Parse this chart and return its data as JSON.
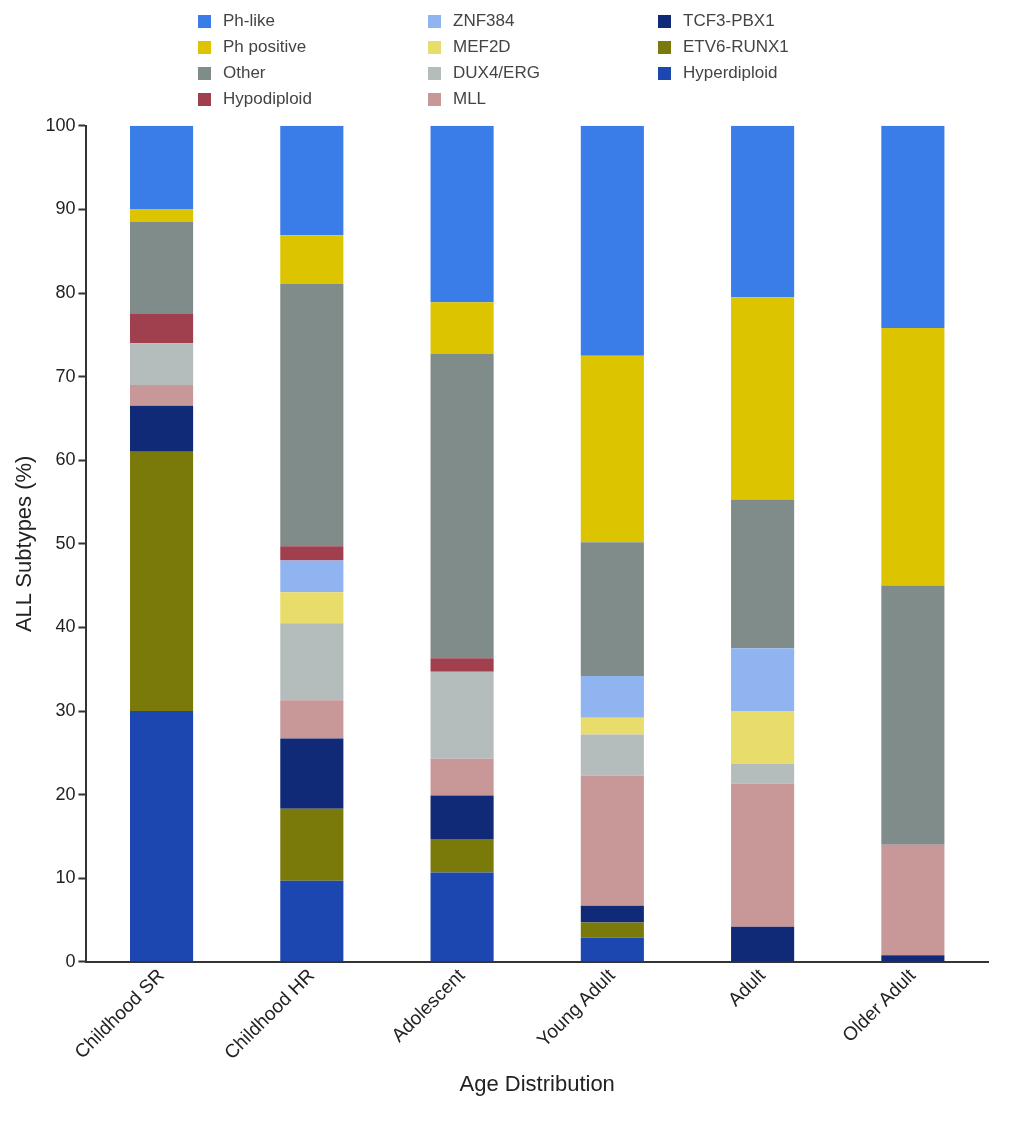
{
  "chart_data": {
    "type": "bar",
    "stacked": true,
    "xlabel": "Age Distribution",
    "ylabel": "ALL Subtypes (%)",
    "categories": [
      "Childhood SR",
      "Childhood HR",
      "Adolescent",
      "Young Adult",
      "Adult",
      "Older Adult"
    ],
    "ylim": [
      0,
      100
    ],
    "yticks": [
      0,
      10,
      20,
      30,
      40,
      50,
      60,
      70,
      80,
      90,
      100
    ],
    "grid": false,
    "legend": "top",
    "series": [
      {
        "name": "Hyperdiploid",
        "color": "#1c46b0",
        "values": [
          30,
          9.7,
          10.7,
          2.9,
          0,
          0
        ]
      },
      {
        "name": "ETV6-RUNX1",
        "color": "#7a7a0a",
        "values": [
          31,
          8.6,
          4,
          1.8,
          0,
          0
        ]
      },
      {
        "name": "TCF3-PBX1",
        "color": "#112a78",
        "values": [
          5.5,
          8.4,
          5.2,
          2,
          4.2,
          0.8
        ]
      },
      {
        "name": "MLL",
        "color": "#c89898",
        "values": [
          2.5,
          4.6,
          4.4,
          15.6,
          17.1,
          13.2
        ]
      },
      {
        "name": "DUX4/ERG",
        "color": "#b5bcbc",
        "values": [
          5,
          9.2,
          10.4,
          4.9,
          2.4,
          0
        ]
      },
      {
        "name": "MEF2D",
        "color": "#e8dc6a",
        "values": [
          0,
          3.7,
          0,
          2,
          6.3,
          0
        ]
      },
      {
        "name": "ZNF384",
        "color": "#8fb4f0",
        "values": [
          0,
          3.8,
          0,
          5,
          7.5,
          0
        ]
      },
      {
        "name": "Hypodiploid",
        "color": "#a0404e",
        "values": [
          3.5,
          1.7,
          1.6,
          0,
          0,
          0
        ]
      },
      {
        "name": "Other",
        "color": "#7f8c8a",
        "values": [
          11,
          31.4,
          36.4,
          16,
          17.8,
          31
        ]
      },
      {
        "name": "Ph positive",
        "color": "#dcc400",
        "values": [
          1.5,
          5.8,
          6.2,
          22.3,
          24.2,
          30.8
        ]
      },
      {
        "name": "Ph-like",
        "color": "#3a7de8",
        "values": [
          10,
          13.1,
          21.1,
          27.5,
          20.5,
          24.2
        ]
      }
    ]
  }
}
